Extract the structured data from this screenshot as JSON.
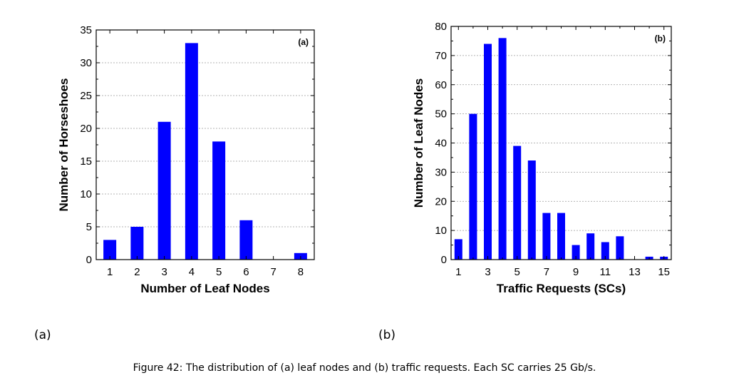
{
  "caption": "Figure 42: The distribution of (a) leaf nodes and (b) traffic requests. Each SC carries 25 Gb/s.",
  "sublabels": [
    "(a)",
    "(b)"
  ],
  "bar_color": "#0000ff",
  "chart_data": [
    {
      "type": "bar",
      "panel_label": "(a)",
      "legend_position": "top-right",
      "xlabel": "Number of Leaf Nodes",
      "ylabel": "Number of Horseshoes",
      "categories": [
        "1",
        "2",
        "3",
        "4",
        "5",
        "6",
        "7",
        "8"
      ],
      "x": [
        1,
        2,
        3,
        4,
        5,
        6,
        7,
        8
      ],
      "values": [
        3,
        5,
        21,
        33,
        18,
        6,
        0,
        1
      ],
      "xlim": [
        0.5,
        8.5
      ],
      "ylim": [
        0,
        35
      ],
      "yticks": [
        0,
        5,
        10,
        15,
        20,
        25,
        30,
        35
      ],
      "xticks": [
        1,
        2,
        3,
        4,
        5,
        6,
        7,
        8
      ],
      "grid": "horizontal dotted"
    },
    {
      "type": "bar",
      "panel_label": "(b)",
      "legend_position": "top-right",
      "xlabel": "Traffic Requests (SCs)",
      "ylabel": "Number of Leaf Nodes",
      "x": [
        1,
        2,
        3,
        4,
        5,
        6,
        7,
        8,
        9,
        10,
        11,
        12,
        13,
        14,
        15
      ],
      "values": [
        7,
        50,
        74,
        76,
        39,
        34,
        16,
        16,
        5,
        9,
        6,
        8,
        0,
        1,
        1
      ],
      "xlim": [
        0.5,
        15.5
      ],
      "ylim": [
        0,
        80
      ],
      "yticks": [
        0,
        10,
        20,
        30,
        40,
        50,
        60,
        70,
        80
      ],
      "xticks": [
        1,
        3,
        5,
        7,
        9,
        11,
        13,
        15
      ],
      "grid": "horizontal dotted"
    }
  ]
}
